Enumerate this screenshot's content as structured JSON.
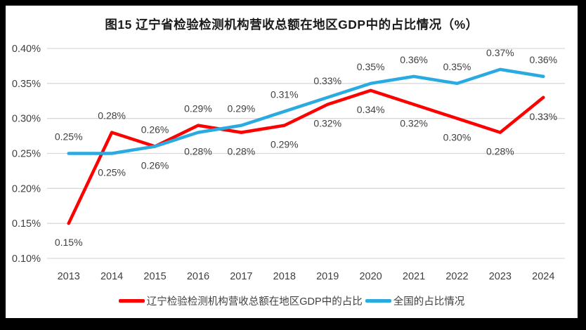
{
  "chart_data": {
    "type": "line",
    "title": "图15 辽宁省检验检测机构营收总额在地区GDP中的占比情况（%）",
    "categories": [
      "2013",
      "2014",
      "2015",
      "2016",
      "2017",
      "2018",
      "2019",
      "2020",
      "2021",
      "2022",
      "2023",
      "2024"
    ],
    "series": [
      {
        "name": "辽宁检验检测机构营收总额在地区GDP中的占比",
        "color": "#FF0000",
        "values": [
          0.15,
          0.28,
          0.26,
          0.29,
          0.28,
          0.29,
          0.32,
          0.34,
          0.32,
          0.3,
          0.28,
          0.33
        ],
        "point_labels": [
          "0.15%",
          "0.28%",
          "0.26%",
          "0.29%",
          "0.28%",
          "0.29%",
          "0.32%",
          "0.34%",
          "0.32%",
          "0.30%",
          "0.28%",
          "0.33%"
        ]
      },
      {
        "name": "全国的占比情况",
        "color": "#29ABE2",
        "values": [
          0.25,
          0.25,
          0.26,
          0.28,
          0.29,
          0.31,
          0.33,
          0.35,
          0.36,
          0.35,
          0.37,
          0.36
        ],
        "point_labels": [
          "0.25%",
          "0.25%",
          "0.26%",
          "0.28%",
          "0.29%",
          "0.31%",
          "0.33%",
          "0.35%",
          "0.36%",
          "0.35%",
          "0.37%",
          "0.36%"
        ]
      }
    ],
    "y_axis": {
      "min": 0.1,
      "max": 0.4,
      "step": 0.05,
      "tick_labels": [
        "0.40%",
        "0.35%",
        "0.30%",
        "0.25%",
        "0.20%",
        "0.15%",
        "0.10%"
      ],
      "unit": "%"
    },
    "grid": true,
    "legend_position": "bottom",
    "styles": {
      "grid_color": "#D9D9D9",
      "axis_text_color": "#404040",
      "label_text_color": "#404040",
      "title_color": "#1A1A1A",
      "frame_color": "#000000",
      "background": "#FFFFFF"
    }
  }
}
